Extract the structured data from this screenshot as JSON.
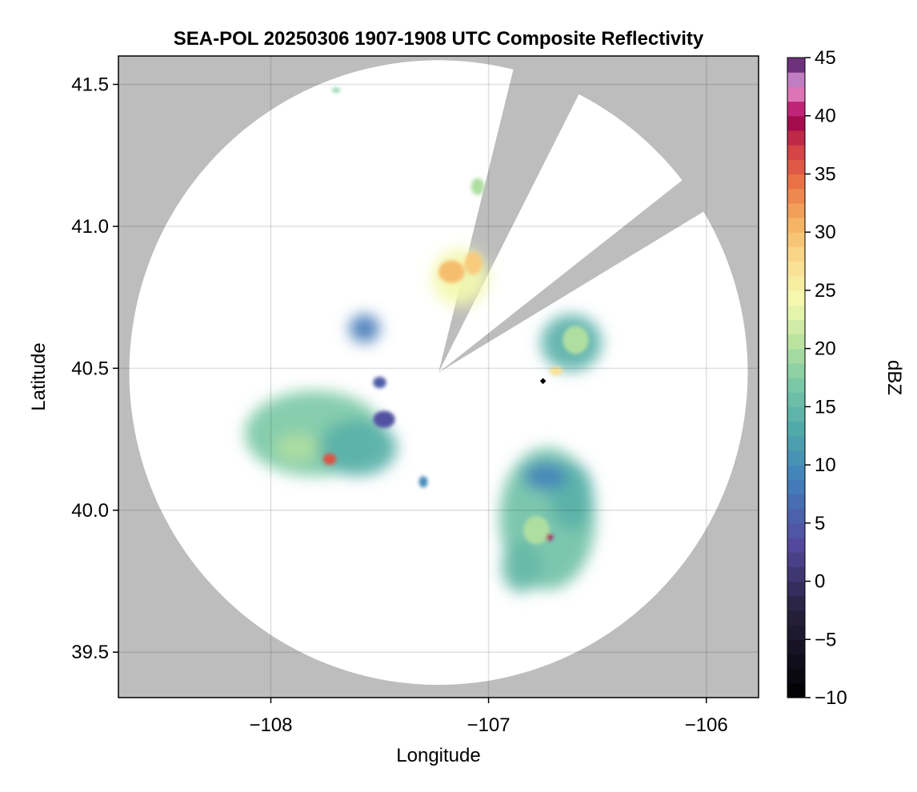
{
  "chart_data": {
    "type": "heatmap",
    "title": "SEA-POL 20250306 1907-1908 UTC Composite Reflectivity",
    "xlabel": "Longitude",
    "ylabel": "Latitude",
    "xlim": [
      -108.7,
      -105.76
    ],
    "ylim": [
      39.34,
      41.6
    ],
    "xticks": [
      -108,
      -107,
      -106
    ],
    "xtick_labels": [
      "−108",
      "−107",
      "−106"
    ],
    "yticks": [
      39.5,
      40.0,
      40.5,
      41.0,
      41.5
    ],
    "ytick_labels": [
      "39.5",
      "40.0",
      "40.5",
      "41.0",
      "41.5"
    ],
    "grid": true,
    "background_color": "#bdbdbd",
    "radar_center": {
      "lon": -107.23,
      "lat": 40.485
    },
    "radar_range_deg": {
      "lon": 1.42,
      "lat": 1.1
    },
    "blocked_sectors_deg_from_north": [
      [
        14,
        27
      ],
      [
        52,
        59
      ]
    ],
    "site_marker": {
      "lon": -106.75,
      "lat": 40.455,
      "symbol": "diamond"
    },
    "colorbar": {
      "label": "dBZ",
      "min": -10,
      "max": 45,
      "step": 1.25,
      "ticks": [
        -10,
        -5,
        0,
        5,
        10,
        15,
        20,
        25,
        30,
        35,
        40,
        45
      ],
      "tick_labels": [
        "−10",
        "−5",
        "0",
        "5",
        "10",
        "15",
        "20",
        "25",
        "30",
        "35",
        "40",
        "45"
      ],
      "colormap": "Spectral_r"
    },
    "echo_cells": [
      {
        "lon": -107.8,
        "lat": 40.27,
        "rx": 0.32,
        "ry": 0.15,
        "dbz": 17
      },
      {
        "lon": -107.6,
        "lat": 40.22,
        "rx": 0.18,
        "ry": 0.1,
        "dbz": 14
      },
      {
        "lon": -107.88,
        "lat": 40.22,
        "rx": 0.1,
        "ry": 0.05,
        "dbz": 20
      },
      {
        "lon": -107.73,
        "lat": 40.18,
        "rx": 0.03,
        "ry": 0.02,
        "dbz": 36
      },
      {
        "lon": -107.48,
        "lat": 40.32,
        "rx": 0.05,
        "ry": 0.03,
        "dbz": 4
      },
      {
        "lon": -106.73,
        "lat": 39.97,
        "rx": 0.22,
        "ry": 0.25,
        "dbz": 16
      },
      {
        "lon": -106.62,
        "lat": 40.05,
        "rx": 0.1,
        "ry": 0.12,
        "dbz": 14
      },
      {
        "lon": -106.85,
        "lat": 39.8,
        "rx": 0.09,
        "ry": 0.09,
        "dbz": 15
      },
      {
        "lon": -106.74,
        "lat": 40.12,
        "rx": 0.1,
        "ry": 0.05,
        "dbz": 9
      },
      {
        "lon": -106.78,
        "lat": 39.93,
        "rx": 0.06,
        "ry": 0.05,
        "dbz": 20
      },
      {
        "lon": -106.72,
        "lat": 39.905,
        "rx": 0.015,
        "ry": 0.012,
        "dbz": 40
      },
      {
        "lon": -106.62,
        "lat": 40.59,
        "rx": 0.14,
        "ry": 0.1,
        "dbz": 14
      },
      {
        "lon": -106.6,
        "lat": 40.6,
        "rx": 0.06,
        "ry": 0.05,
        "dbz": 20
      },
      {
        "lon": -106.69,
        "lat": 40.49,
        "rx": 0.03,
        "ry": 0.015,
        "dbz": 27
      },
      {
        "lon": -107.13,
        "lat": 40.82,
        "rx": 0.13,
        "ry": 0.1,
        "dbz": 24
      },
      {
        "lon": -107.17,
        "lat": 40.84,
        "rx": 0.06,
        "ry": 0.04,
        "dbz": 30
      },
      {
        "lon": -107.07,
        "lat": 40.87,
        "rx": 0.04,
        "ry": 0.04,
        "dbz": 29
      },
      {
        "lon": -107.05,
        "lat": 41.14,
        "rx": 0.03,
        "ry": 0.03,
        "dbz": 20
      },
      {
        "lon": -107.57,
        "lat": 40.64,
        "rx": 0.07,
        "ry": 0.05,
        "dbz": 8
      },
      {
        "lon": -107.5,
        "lat": 40.45,
        "rx": 0.03,
        "ry": 0.02,
        "dbz": 5
      },
      {
        "lon": -107.7,
        "lat": 41.48,
        "rx": 0.02,
        "ry": 0.008,
        "dbz": 18
      },
      {
        "lon": -107.3,
        "lat": 40.1,
        "rx": 0.02,
        "ry": 0.02,
        "dbz": 10
      }
    ]
  }
}
